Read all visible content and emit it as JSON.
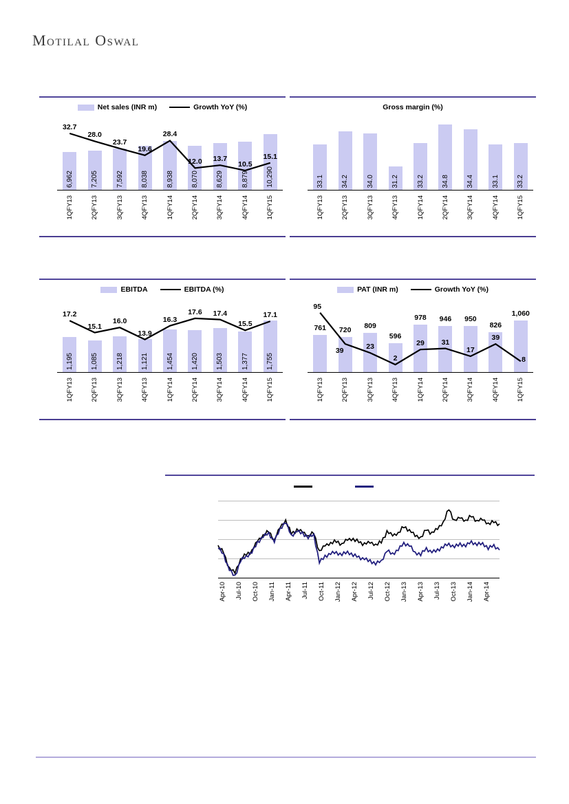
{
  "brand": {
    "logo_text": "Motilal Oswal"
  },
  "theme": {
    "bar_color": "#cbcbf2",
    "line_color": "#000000",
    "navy_color": "#23207f",
    "panel_border_color": "#50459b",
    "footer_line_color": "#b3abdc",
    "grid_color": "#bdbdbd"
  },
  "chart_data": [
    {
      "id": "net-sales",
      "type": "bar+line",
      "legend": [
        {
          "label": "Net sales (INR m)",
          "series": "bar"
        },
        {
          "label": "Growth YoY (%)",
          "series": "line"
        }
      ],
      "categories": [
        "1QFY13",
        "2QFY13",
        "3QFY13",
        "4QFY13",
        "1QFY14",
        "2QFY14",
        "3QFY14",
        "4QFY14",
        "1QFY15"
      ],
      "bars": {
        "name": "Net sales (INR m)",
        "values": [
          6962,
          7205,
          7592,
          8038,
          8938,
          8070,
          8629,
          8879,
          10290
        ],
        "labels": [
          "6,962",
          "7,205",
          "7,592",
          "8,038",
          "8,938",
          "8,070",
          "8,629",
          "8,879",
          "10,290"
        ],
        "label_position": "inside"
      },
      "line": {
        "name": "Growth YoY (%)",
        "values": [
          32.7,
          28.0,
          23.7,
          19.6,
          28.4,
          12.0,
          13.7,
          10.5,
          15.1
        ],
        "labels": [
          "32.7",
          "28.0",
          "23.7",
          "19.6",
          "28.4",
          "12.0",
          "13.7",
          "10.5",
          "15.1"
        ]
      },
      "bar_ylim": [
        0,
        12900
      ],
      "line_ylim": [
        8,
        36
      ],
      "line_band": [
        12,
        80
      ]
    },
    {
      "id": "gross-margin",
      "type": "bar",
      "title": "Gross margin (%)",
      "categories": [
        "1QFY13",
        "2QFY13",
        "3QFY13",
        "4QFY13",
        "1QFY14",
        "2QFY14",
        "3QFY14",
        "4QFY14",
        "1QFY15"
      ],
      "bars": {
        "name": "Gross margin (%)",
        "values": [
          33.1,
          34.2,
          34.0,
          31.2,
          33.2,
          34.8,
          34.4,
          33.1,
          33.2
        ],
        "labels": [
          "33.1",
          "34.2",
          "34.0",
          "31.2",
          "33.2",
          "34.8",
          "34.4",
          "33.1",
          "33.2"
        ],
        "label_position": "inside"
      },
      "bar_ylim": [
        29.2,
        35.2
      ]
    },
    {
      "id": "ebitda",
      "type": "bar+line",
      "legend": [
        {
          "label": "EBITDA",
          "series": "bar"
        },
        {
          "label": "EBITDA (%)",
          "series": "line"
        }
      ],
      "categories": [
        "1QFY13",
        "2QFY13",
        "3QFY13",
        "4QFY13",
        "1QFY14",
        "2QFY14",
        "3QFY14",
        "4QFY14",
        "1QFY15"
      ],
      "bars": {
        "name": "EBITDA",
        "values": [
          1195,
          1085,
          1218,
          1121,
          1454,
          1420,
          1503,
          1377,
          1755
        ],
        "labels": [
          "1,195",
          "1,085",
          "1,218",
          "1,121",
          "1,454",
          "1,420",
          "1,503",
          "1,377",
          "1,755"
        ],
        "label_position": "inside"
      },
      "line": {
        "name": "EBITDA (%)",
        "values": [
          17.2,
          15.1,
          16.0,
          13.9,
          16.3,
          17.6,
          17.4,
          15.5,
          17.1
        ],
        "labels": [
          "17.2",
          "15.1",
          "16.0",
          "13.9",
          "16.3",
          "17.6",
          "17.4",
          "15.5",
          "17.1"
        ]
      },
      "bar_ylim": [
        0,
        2380
      ],
      "line_ylim": [
        13,
        18.8
      ],
      "line_band": [
        14,
        62
      ]
    },
    {
      "id": "pat",
      "type": "bar+line",
      "legend": [
        {
          "label": "PAT (INR m)",
          "series": "bar"
        },
        {
          "label": "Growth YoY (%)",
          "series": "line"
        }
      ],
      "categories": [
        "1QFY13",
        "2QFY13",
        "3QFY13",
        "4QFY13",
        "1QFY14",
        "2QFY14",
        "3QFY14",
        "4QFY14",
        "1QFY15"
      ],
      "bars": {
        "name": "PAT (INR m)",
        "values": [
          761,
          720,
          809,
          596,
          978,
          946,
          950,
          826,
          1060
        ],
        "labels": [
          "761",
          "720",
          "809",
          "596",
          "978",
          "946",
          "950",
          "826",
          "1,060"
        ],
        "label_position": "above"
      },
      "line": {
        "name": "Growth YoY (%)",
        "values": [
          95,
          39,
          23,
          2,
          29,
          31,
          17,
          39,
          8
        ],
        "labels": [
          "95",
          "39",
          "23",
          "2",
          "29",
          "31",
          "17",
          "39",
          "8"
        ],
        "label_dy": [
          -15,
          4,
          -15,
          -15,
          -15,
          -15,
          -15,
          -15,
          -8
        ],
        "label_dx": [
          -4,
          -8,
          0,
          0,
          0,
          0,
          0,
          0,
          14
        ]
      },
      "bar_ylim": [
        0,
        1440
      ],
      "line_ylim": [
        -4,
        102
      ],
      "line_band": [
        10,
        96
      ]
    },
    {
      "id": "stock-price",
      "type": "line",
      "legend": [
        {
          "label": "",
          "color": "#000000"
        },
        {
          "label": "",
          "color": "#23207f"
        }
      ],
      "x_labels": [
        "Apr-10",
        "Jul-10",
        "Oct-10",
        "Jan-11",
        "Apr-11",
        "Jul-11",
        "Oct-11",
        "Jan-12",
        "Apr-12",
        "Jul-12",
        "Oct-12",
        "Jan-13",
        "Apr-13",
        "Jul-13",
        "Oct-13",
        "Jan-14",
        "Apr-14"
      ],
      "grid": true,
      "ylim": [
        0,
        100
      ],
      "series": [
        {
          "name": "series-black",
          "color": "#000000",
          "values": [
            41,
            32,
            12,
            7,
            24,
            30,
            35,
            48,
            55,
            60,
            49,
            66,
            74,
            57,
            62,
            60,
            54,
            58,
            34,
            42,
            45,
            47,
            44,
            50,
            50,
            46,
            44,
            46,
            43,
            46,
            60,
            55,
            58,
            66,
            62,
            55,
            52,
            62,
            58,
            64,
            72,
            89,
            74,
            78,
            74,
            80,
            74,
            76,
            70,
            72,
            70
          ]
        },
        {
          "name": "series-navy",
          "color": "#23207f",
          "values": [
            39,
            30,
            10,
            2,
            22,
            28,
            33,
            46,
            53,
            58,
            47,
            64,
            72,
            55,
            60,
            58,
            52,
            56,
            20,
            28,
            31,
            33,
            30,
            34,
            29,
            27,
            24,
            22,
            18,
            22,
            35,
            31,
            36,
            45,
            42,
            33,
            30,
            38,
            33,
            36,
            40,
            44,
            40,
            44,
            41,
            47,
            43,
            45,
            38,
            42,
            36
          ]
        }
      ]
    }
  ]
}
